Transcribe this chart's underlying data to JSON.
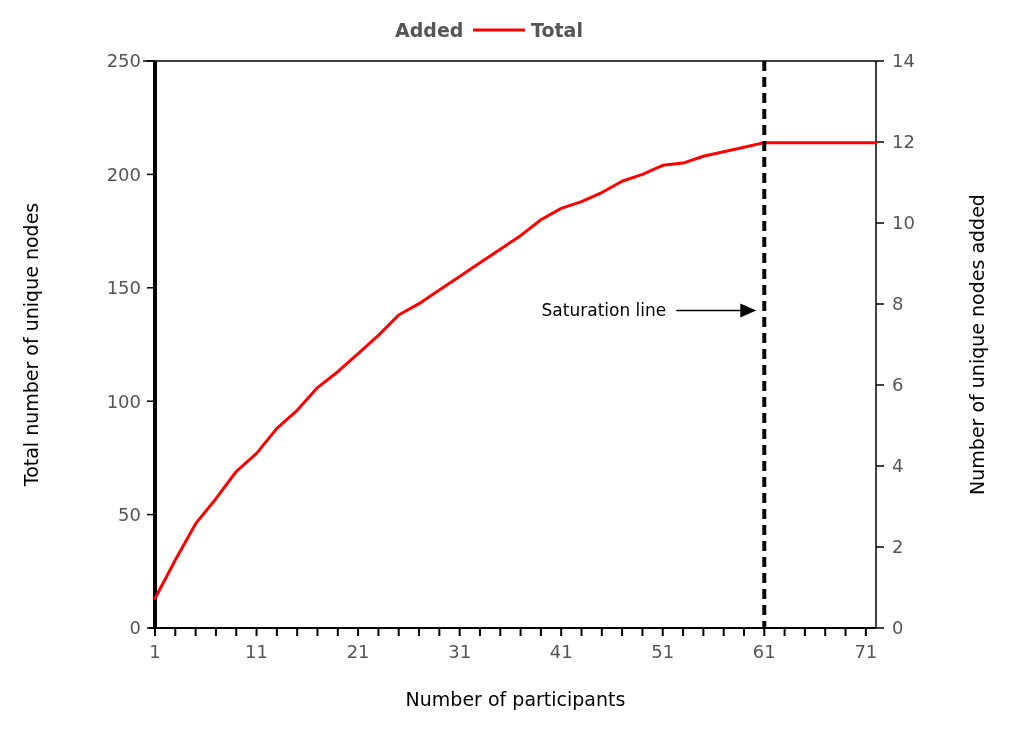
{
  "chart_data": {
    "type": "line",
    "xlabel": "Number of participants",
    "ylabel": "Total number of unique nodes",
    "y2label": "Number of unique nodes added",
    "x": [
      1,
      3,
      5,
      7,
      9,
      11,
      13,
      15,
      17,
      19,
      21,
      23,
      25,
      27,
      29,
      31,
      33,
      35,
      37,
      39,
      41,
      43,
      45,
      47,
      49,
      51,
      53,
      55,
      57,
      59,
      61,
      63,
      65,
      67,
      69,
      71,
      72
    ],
    "series": [
      {
        "name": "Added",
        "values": [
          null,
          null,
          null,
          null,
          null,
          null,
          null,
          null,
          null,
          null,
          null,
          null,
          null,
          null,
          null,
          null,
          null,
          null,
          null,
          null,
          null,
          null,
          null,
          null,
          null,
          null,
          null,
          null,
          null,
          null,
          null,
          null,
          null,
          null,
          null,
          null,
          null
        ]
      },
      {
        "name": "Total",
        "color": "#ff0000",
        "values": [
          13,
          30,
          46,
          57,
          69,
          77,
          88,
          96,
          106,
          113,
          121,
          129,
          138,
          143,
          149,
          155,
          161,
          167,
          173,
          180,
          185,
          188,
          192,
          197,
          200,
          204,
          205,
          208,
          210,
          212,
          214,
          214,
          214,
          214,
          214,
          214,
          214
        ]
      }
    ],
    "xlim": [
      1,
      72
    ],
    "xticks": [
      1,
      {
        "value": 3,
        "label": null
      },
      {
        "value": 5,
        "label": null
      },
      {
        "value": 7,
        "label": null
      },
      {
        "value": 9,
        "label": null
      },
      11,
      {
        "value": 13,
        "label": null
      },
      {
        "value": 15,
        "label": null
      },
      {
        "value": 17,
        "label": null
      },
      {
        "value": 19,
        "label": null
      },
      21,
      {
        "value": 23,
        "label": null
      },
      {
        "value": 25,
        "label": null
      },
      {
        "value": 27,
        "label": null
      },
      {
        "value": 29,
        "label": null
      },
      31,
      {
        "value": 33,
        "label": null
      },
      {
        "value": 35,
        "label": null
      },
      {
        "value": 37,
        "label": null
      },
      {
        "value": 39,
        "label": null
      },
      41,
      {
        "value": 43,
        "label": null
      },
      {
        "value": 45,
        "label": null
      },
      {
        "value": 47,
        "label": null
      },
      {
        "value": 49,
        "label": null
      },
      51,
      {
        "value": 53,
        "label": null
      },
      {
        "value": 55,
        "label": null
      },
      {
        "value": 57,
        "label": null
      },
      {
        "value": 59,
        "label": null
      },
      61,
      {
        "value": 63,
        "label": null
      },
      {
        "value": 65,
        "label": null
      },
      {
        "value": 67,
        "label": null
      },
      {
        "value": 69,
        "label": null
      },
      71
    ],
    "ylim": [
      0,
      250
    ],
    "yticks": [
      0,
      50,
      100,
      150,
      200,
      250
    ],
    "y2lim": [
      0,
      14
    ],
    "y2ticks": [
      0,
      2,
      4,
      6,
      8,
      10,
      12,
      14
    ],
    "ref_lines": [
      {
        "axis": "x",
        "value": 61,
        "color": "#000000",
        "line_style": "dashed"
      }
    ],
    "annotations": [
      "Saturation line"
    ],
    "legend": "top",
    "grid": false
  }
}
